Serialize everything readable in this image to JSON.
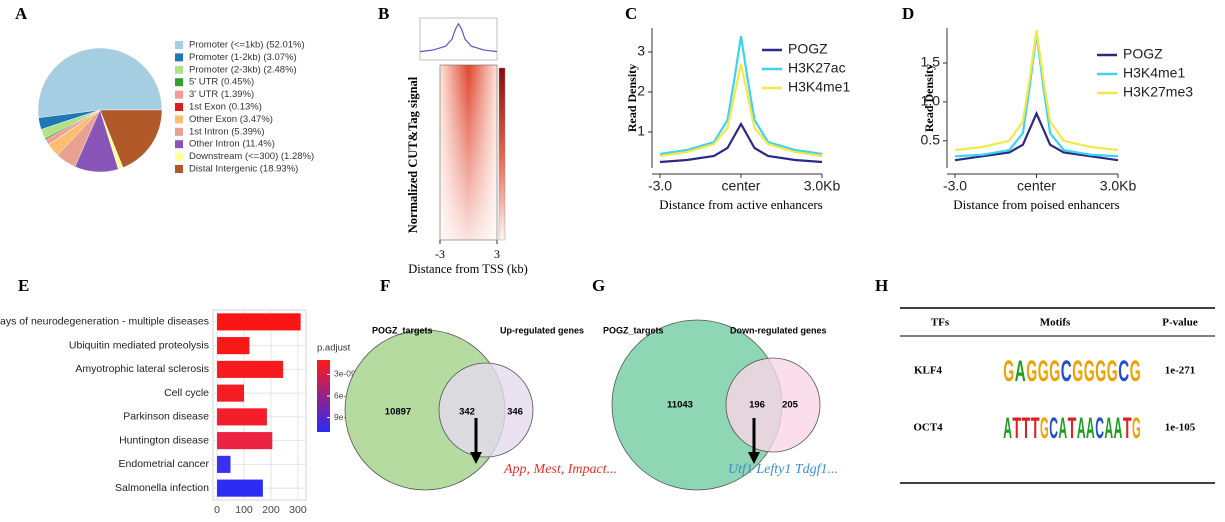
{
  "panel_labels": [
    "A",
    "B",
    "C",
    "D",
    "E",
    "F",
    "G",
    "H"
  ],
  "chart_data": [
    {
      "type": "pie",
      "categories": [
        "Promoter (<=1kb) (52.01%)",
        "Promoter (1-2kb) (3.07%)",
        "Promoter (2-3kb) (2.48%)",
        "5' UTR (0.45%)",
        "3' UTR (1.39%)",
        "1st Exon (0.13%)",
        "Other Exon (3.47%)",
        "1st Intron (5.39%)",
        "Other Intron (11.4%)",
        "Downstream (<=300) (1.28%)",
        "Distal Intergenic (18.93%)"
      ],
      "values": [
        52.01,
        3.07,
        2.48,
        0.45,
        1.39,
        0.13,
        3.47,
        5.39,
        11.4,
        1.28,
        18.93
      ],
      "colors": [
        "#a6cee3",
        "#1f78b4",
        "#b2df8a",
        "#33a02c",
        "#fb9a99",
        "#e31a1c",
        "#fdbf6f",
        "#e8a090",
        "#8a55b8",
        "#ffff99",
        "#b15928"
      ]
    },
    {
      "type": "heatmap",
      "ylabel": "Normalized CUT&Tag signal",
      "xlabel": "Distance from TSS (kb)",
      "xlim": [
        -3,
        3
      ],
      "xticks": [
        -3,
        3
      ],
      "profile": {
        "x": [
          -3,
          -2,
          -1,
          -0.5,
          -0.25,
          0,
          0.25,
          0.5,
          1,
          2,
          3
        ],
        "values": [
          0.22,
          0.26,
          0.36,
          0.55,
          0.8,
          0.95,
          0.8,
          0.55,
          0.36,
          0.26,
          0.22
        ],
        "ylim": [
          0,
          1.1
        ],
        "color": "#5555cc"
      },
      "colors": [
        "#fff5f0",
        "#e8624a",
        "#8b0a0a"
      ]
    },
    {
      "type": "line",
      "ylabel": "Read Density",
      "xlabel": "Distance from active enhancers",
      "x": [
        -3,
        -2,
        -1,
        -0.5,
        -0.25,
        0,
        0.25,
        0.5,
        1,
        2,
        3
      ],
      "xlim": [
        -3,
        3
      ],
      "xticks": [
        {
          "value": -3,
          "label": "-3.0"
        },
        {
          "value": 0,
          "label": "center"
        },
        {
          "value": 3,
          "label": "3.0Kb"
        }
      ],
      "ylim": [
        0.1,
        3.6
      ],
      "yticks": [
        1,
        2,
        3
      ],
      "legend": "top-right",
      "series": [
        {
          "name": "POGZ",
          "color": "#2a2a86",
          "values": [
            0.25,
            0.3,
            0.4,
            0.6,
            0.9,
            1.2,
            0.9,
            0.6,
            0.4,
            0.3,
            0.25
          ]
        },
        {
          "name": "H3K27ac",
          "color": "#3dd2f2",
          "values": [
            0.45,
            0.55,
            0.75,
            1.3,
            2.3,
            3.4,
            2.3,
            1.3,
            0.75,
            0.55,
            0.45
          ]
        },
        {
          "name": "H3K4me1",
          "color": "#f3e84a",
          "values": [
            0.4,
            0.5,
            0.7,
            1.1,
            1.9,
            2.7,
            1.9,
            1.1,
            0.7,
            0.5,
            0.4
          ]
        }
      ]
    },
    {
      "type": "line",
      "ylabel": "Read Density",
      "xlabel": "Distance from poised enhancers",
      "x": [
        -3,
        -2,
        -1,
        -0.5,
        -0.25,
        0,
        0.25,
        0.5,
        1,
        2,
        3
      ],
      "xlim": [
        -3,
        3
      ],
      "xticks": [
        {
          "value": -3,
          "label": "-3.0"
        },
        {
          "value": 0,
          "label": "center"
        },
        {
          "value": 3,
          "label": "3.0Kb"
        }
      ],
      "ylim": [
        0.15,
        1.95
      ],
      "yticks": [
        0.5,
        {
          "value": 1,
          "label": "1.0"
        },
        1.5
      ],
      "legend": "top-right",
      "series": [
        {
          "name": "POGZ",
          "color": "#2a2a86",
          "values": [
            0.25,
            0.3,
            0.35,
            0.45,
            0.65,
            0.85,
            0.65,
            0.45,
            0.35,
            0.3,
            0.25
          ]
        },
        {
          "name": "H3K4me1",
          "color": "#3dd2f2",
          "values": [
            0.3,
            0.32,
            0.38,
            0.6,
            1.2,
            1.88,
            1.2,
            0.6,
            0.38,
            0.32,
            0.3
          ]
        },
        {
          "name": "H3K27me3",
          "color": "#f3e84a",
          "values": [
            0.38,
            0.42,
            0.5,
            0.75,
            1.3,
            1.92,
            1.3,
            0.75,
            0.5,
            0.42,
            0.38
          ]
        }
      ]
    },
    {
      "type": "barh",
      "categories": [
        "Pathways of neurodegeneration - multiple diseases",
        "Ubiquitin mediated proteolysis",
        "Amyotrophic lateral sclerosis",
        "Cell cycle",
        "Parkinson disease",
        "Huntington disease",
        "Endometrial cancer",
        "Salmonella infection"
      ],
      "values": [
        310,
        120,
        245,
        100,
        185,
        205,
        50,
        170
      ],
      "colors": [
        "#fa1414",
        "#f81818",
        "#f71a1e",
        "#f51c24",
        "#f41e2a",
        "#ec2242",
        "#3b30f2",
        "#2c2cf4"
      ],
      "xlim": [
        -15,
        330
      ],
      "xticks": [
        0,
        100,
        200,
        300
      ],
      "grid": true,
      "colorbar": {
        "title": "p.adjust",
        "lim": [
          1e-09,
          1.1e-08
        ],
        "colors": [
          "#ff1a1a",
          "#2a2af5"
        ],
        "ticks": [
          {
            "value": 3e-09,
            "label": "3e-09"
          },
          {
            "value": 6e-09,
            "label": "6e-09"
          },
          {
            "value": 9e-09,
            "label": "9e-09"
          }
        ]
      }
    }
  ],
  "venns": [
    {
      "left_label": "POGZ_targets",
      "right_label": "Up-regulated genes",
      "left_only": 10897,
      "overlap": 342,
      "right_only": 346,
      "genes": "App, Mest, Impact..."
    },
    {
      "left_label": "POGZ_targets",
      "right_label": "Down-regulated genes",
      "left_only": 11043,
      "overlap": 196,
      "right_only": 205,
      "genes": "Utf1 Lefty1 Tdgf1..."
    }
  ],
  "motif_table": {
    "headers": [
      "TFs",
      "Motifs",
      "P-value"
    ],
    "letter_colors": {
      "A": "#1e9e1e",
      "C": "#1f4fd6",
      "G": "#f0a000",
      "T": "#e02020"
    },
    "rows": [
      {
        "tf": "KLF4",
        "motif": [
          "G",
          "A",
          "G",
          "G",
          "G",
          "C",
          "G",
          "G",
          "G",
          "G",
          "C",
          "G"
        ],
        "p_value": "1e-271"
      },
      {
        "tf": "OCT4",
        "motif": [
          "A",
          "T",
          "T",
          "T",
          "G",
          "C",
          "A",
          "T",
          "A",
          "A",
          "C",
          "A",
          "A",
          "T",
          "G"
        ],
        "p_value": "1e-105"
      }
    ]
  }
}
